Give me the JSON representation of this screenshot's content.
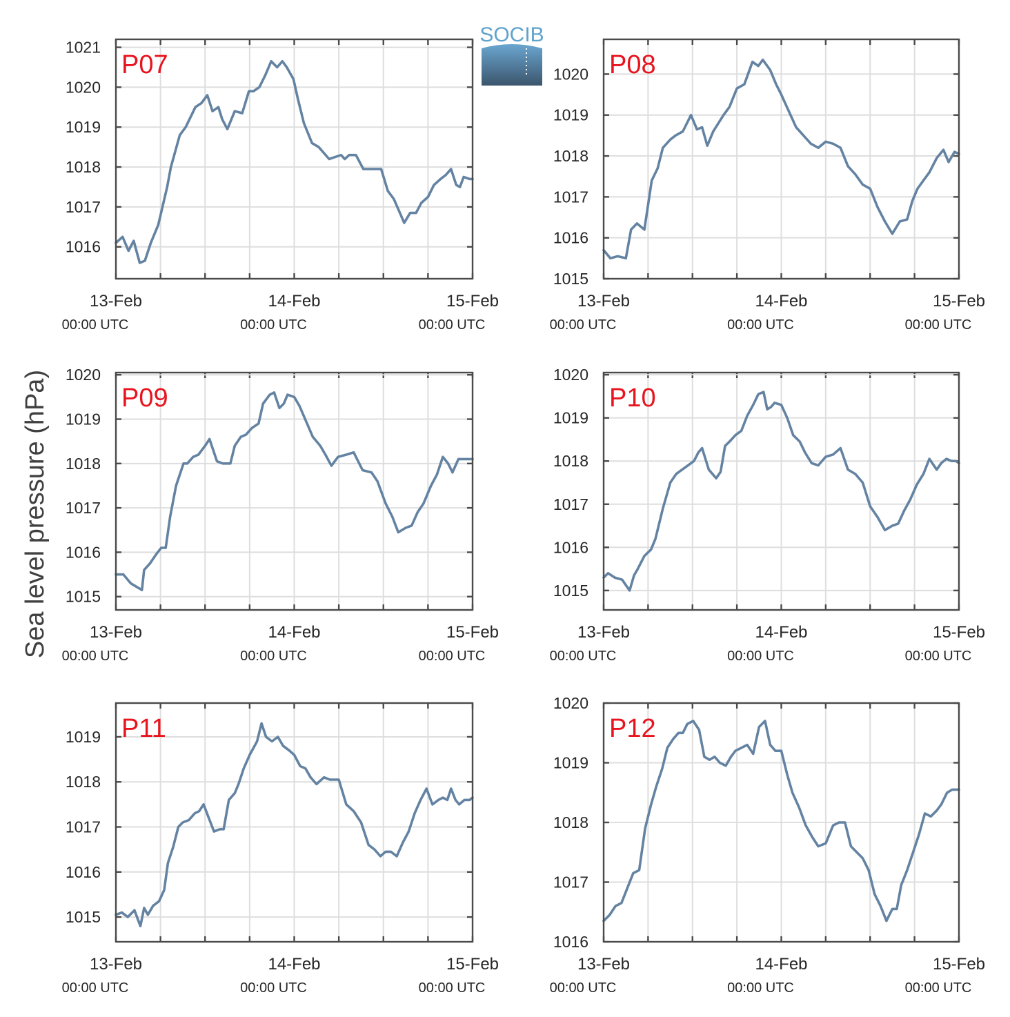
{
  "figure": {
    "ylabel": "Sea level pressure (hPa)",
    "logo_text": "SOCIB",
    "colors": {
      "series": "#6483a2",
      "panel_label": "#e8141e",
      "frame": "#4a4a4a",
      "grid": "#dedede",
      "logo_top": "#6aa6cf",
      "logo_bottom": "#3c556d"
    }
  },
  "chart_data": [
    {
      "type": "line",
      "name": "P07",
      "label": "P07",
      "xlim": [
        0,
        48
      ],
      "ylim": [
        1015.2,
        1021.2
      ],
      "yticks": [
        1016,
        1017,
        1018,
        1019,
        1020,
        1021
      ],
      "xticks": [
        {
          "label": "13-Feb",
          "sub": "00:00 UTC"
        },
        {
          "label": "14-Feb",
          "sub": "00:00 UTC"
        },
        {
          "label": "15-Feb",
          "sub": "00:00 UTC"
        }
      ],
      "hours": [
        0,
        0.9,
        1.7,
        2.4,
        3.2,
        3.9,
        4.7,
        5.7,
        6.9,
        7.4,
        8.6,
        9.4,
        10.7,
        11.5,
        12.3,
        13.0,
        13.8,
        14.3,
        15.0,
        16.0,
        17.0,
        17.9,
        18.5,
        19.3,
        20.1,
        20.9,
        21.7,
        22.4,
        23.0,
        23.9,
        24.5,
        25.3,
        26.4,
        27.3,
        28.7,
        29.5,
        30.3,
        30.8,
        31.4,
        32.3,
        33.3,
        34.2,
        35.7,
        36.6,
        37.4,
        38.1,
        38.8,
        39.6,
        40.4,
        41.1,
        42.0,
        42.8,
        43.7,
        44.4,
        45.1,
        45.8,
        46.3,
        46.8,
        47.6,
        48.0
      ],
      "values": [
        1016.1,
        1016.25,
        1015.9,
        1016.15,
        1015.6,
        1015.65,
        1016.1,
        1016.55,
        1017.5,
        1018.0,
        1018.8,
        1019.0,
        1019.5,
        1019.6,
        1019.8,
        1019.4,
        1019.5,
        1019.2,
        1018.95,
        1019.4,
        1019.35,
        1019.9,
        1019.9,
        1020.0,
        1020.3,
        1020.65,
        1020.5,
        1020.65,
        1020.5,
        1020.2,
        1019.7,
        1019.1,
        1018.6,
        1018.5,
        1018.2,
        1018.25,
        1018.3,
        1018.2,
        1018.3,
        1018.3,
        1017.95,
        1017.95,
        1017.95,
        1017.4,
        1017.2,
        1016.9,
        1016.6,
        1016.85,
        1016.85,
        1017.1,
        1017.25,
        1017.55,
        1017.7,
        1017.8,
        1017.95,
        1017.55,
        1017.5,
        1017.75,
        1017.7,
        1017.7
      ]
    },
    {
      "type": "line",
      "name": "P08",
      "label": "P08",
      "xlim": [
        0,
        48
      ],
      "ylim": [
        1015.0,
        1020.85
      ],
      "yticks": [
        1015,
        1016,
        1017,
        1018,
        1019,
        1020
      ],
      "xticks": [
        {
          "label": "13-Feb",
          "sub": "00:00 UTC"
        },
        {
          "label": "14-Feb",
          "sub": "00:00 UTC"
        },
        {
          "label": "15-Feb",
          "sub": "00:00 UTC"
        }
      ],
      "hours": [
        0,
        0.9,
        1.9,
        3.0,
        3.7,
        4.5,
        5.5,
        6.5,
        7.3,
        8.0,
        9.0,
        9.7,
        10.7,
        11.8,
        12.6,
        13.3,
        14.0,
        14.8,
        15.5,
        16.2,
        17.0,
        18.0,
        19.0,
        20.1,
        20.9,
        21.5,
        22.5,
        23.3,
        24.0,
        25.0,
        26.0,
        27.0,
        28.0,
        29.0,
        30.0,
        31.0,
        32.0,
        33.0,
        34.0,
        35.0,
        36.0,
        37.0,
        38.0,
        39.0,
        40.0,
        41.0,
        41.7,
        42.4,
        43.2,
        44.0,
        45.0,
        45.9,
        46.6,
        47.4,
        48.0
      ],
      "values": [
        1015.7,
        1015.5,
        1015.55,
        1015.5,
        1016.2,
        1016.35,
        1016.2,
        1017.4,
        1017.7,
        1018.2,
        1018.4,
        1018.5,
        1018.6,
        1019.0,
        1018.65,
        1018.7,
        1018.25,
        1018.6,
        1018.8,
        1019.0,
        1019.2,
        1019.65,
        1019.75,
        1020.3,
        1020.2,
        1020.35,
        1020.1,
        1019.75,
        1019.5,
        1019.1,
        1018.7,
        1018.5,
        1018.3,
        1018.2,
        1018.35,
        1018.3,
        1018.2,
        1017.75,
        1017.55,
        1017.3,
        1017.2,
        1016.75,
        1016.4,
        1016.1,
        1016.4,
        1016.45,
        1016.9,
        1017.2,
        1017.4,
        1017.6,
        1017.95,
        1018.15,
        1017.85,
        1018.1,
        1018.05
      ]
    },
    {
      "type": "line",
      "name": "P09",
      "label": "P09",
      "xlim": [
        0,
        48
      ],
      "ylim": [
        1014.7,
        1020.05
      ],
      "yticks": [
        1015,
        1016,
        1017,
        1018,
        1019,
        1020
      ],
      "xticks": [
        {
          "label": "13-Feb",
          "sub": "00:00 UTC"
        },
        {
          "label": "14-Feb",
          "sub": "00:00 UTC"
        },
        {
          "label": "15-Feb",
          "sub": "00:00 UTC"
        }
      ],
      "hours": [
        0,
        1.0,
        2.0,
        3.0,
        3.5,
        3.8,
        4.6,
        5.4,
        6.1,
        6.7,
        7.3,
        8.1,
        9.1,
        9.6,
        10.4,
        11.1,
        12.0,
        12.6,
        13.6,
        14.4,
        15.4,
        16.0,
        16.8,
        17.5,
        18.3,
        19.2,
        19.8,
        20.7,
        21.3,
        22.0,
        22.6,
        23.1,
        24.0,
        24.7,
        25.6,
        26.5,
        27.5,
        28.2,
        29.0,
        29.9,
        31.0,
        32.0,
        33.2,
        34.4,
        35.2,
        36.3,
        37.2,
        38.0,
        39.0,
        39.8,
        40.6,
        41.4,
        42.4,
        43.2,
        44.0,
        44.7,
        45.3,
        46.1,
        46.9,
        47.6,
        48.0
      ],
      "values": [
        1015.5,
        1015.5,
        1015.3,
        1015.2,
        1015.15,
        1015.6,
        1015.75,
        1015.95,
        1016.1,
        1016.1,
        1016.8,
        1017.5,
        1018.0,
        1018.0,
        1018.15,
        1018.2,
        1018.4,
        1018.55,
        1018.05,
        1018.0,
        1018.0,
        1018.4,
        1018.6,
        1018.65,
        1018.8,
        1018.9,
        1019.35,
        1019.55,
        1019.6,
        1019.25,
        1019.35,
        1019.55,
        1019.5,
        1019.3,
        1018.95,
        1018.6,
        1018.4,
        1018.2,
        1017.95,
        1018.15,
        1018.2,
        1018.25,
        1017.85,
        1017.8,
        1017.6,
        1017.1,
        1016.8,
        1016.45,
        1016.55,
        1016.6,
        1016.9,
        1017.1,
        1017.5,
        1017.75,
        1018.15,
        1018.0,
        1017.8,
        1018.1,
        1018.1,
        1018.1,
        1018.1
      ]
    },
    {
      "type": "line",
      "name": "P10",
      "label": "P10",
      "xlim": [
        0,
        48
      ],
      "ylim": [
        1014.55,
        1020.05
      ],
      "yticks": [
        1015,
        1016,
        1017,
        1018,
        1019,
        1020
      ],
      "xticks": [
        {
          "label": "13-Feb",
          "sub": "00:00 UTC"
        },
        {
          "label": "14-Feb",
          "sub": "00:00 UTC"
        },
        {
          "label": "15-Feb",
          "sub": "00:00 UTC"
        }
      ],
      "hours": [
        0,
        0.6,
        1.5,
        2.5,
        3.5,
        4.1,
        4.6,
        5.5,
        6.4,
        7.0,
        8.0,
        9.0,
        9.8,
        10.6,
        11.4,
        12.2,
        12.8,
        13.3,
        14.2,
        15.2,
        15.8,
        16.4,
        17.0,
        17.8,
        18.6,
        19.4,
        20.2,
        20.9,
        21.6,
        22.1,
        22.6,
        23.1,
        24.0,
        24.8,
        25.6,
        26.5,
        27.2,
        28.1,
        29.0,
        30.0,
        31.0,
        32.0,
        33.0,
        34.0,
        35.0,
        36.0,
        37.0,
        38.0,
        39.0,
        39.8,
        40.6,
        41.4,
        42.3,
        43.2,
        44.0,
        45.0,
        45.6,
        46.3,
        47.0,
        47.6,
        48.0
      ],
      "values": [
        1015.3,
        1015.4,
        1015.3,
        1015.25,
        1015.0,
        1015.35,
        1015.5,
        1015.8,
        1015.95,
        1016.2,
        1016.9,
        1017.5,
        1017.7,
        1017.8,
        1017.9,
        1018.0,
        1018.2,
        1018.3,
        1017.8,
        1017.6,
        1017.75,
        1018.35,
        1018.45,
        1018.6,
        1018.7,
        1019.05,
        1019.3,
        1019.55,
        1019.6,
        1019.2,
        1019.25,
        1019.35,
        1019.3,
        1019.0,
        1018.6,
        1018.45,
        1018.2,
        1017.95,
        1017.9,
        1018.1,
        1018.15,
        1018.3,
        1017.8,
        1017.7,
        1017.5,
        1016.95,
        1016.7,
        1016.4,
        1016.5,
        1016.55,
        1016.85,
        1017.1,
        1017.45,
        1017.7,
        1018.05,
        1017.8,
        1017.95,
        1018.05,
        1018.0,
        1018.0,
        1017.95
      ]
    },
    {
      "type": "line",
      "name": "P11",
      "label": "P11",
      "xlim": [
        0,
        48
      ],
      "ylim": [
        1014.45,
        1019.75
      ],
      "yticks": [
        1015,
        1016,
        1017,
        1018,
        1019
      ],
      "xticks": [
        {
          "label": "13-Feb",
          "sub": "00:00 UTC"
        },
        {
          "label": "14-Feb",
          "sub": "00:00 UTC"
        },
        {
          "label": "15-Feb",
          "sub": "00:00 UTC"
        }
      ],
      "hours": [
        0,
        0.8,
        1.6,
        2.5,
        3.3,
        3.8,
        4.3,
        5.0,
        5.8,
        6.5,
        7.0,
        7.7,
        8.4,
        9.0,
        9.8,
        10.6,
        11.2,
        11.8,
        12.5,
        13.2,
        14.0,
        14.5,
        15.2,
        16.0,
        16.5,
        17.2,
        18.0,
        19.0,
        19.6,
        20.2,
        21.0,
        21.8,
        22.5,
        23.3,
        24.0,
        24.8,
        25.5,
        26.2,
        27.0,
        28.0,
        28.8,
        30.0,
        31.0,
        32.0,
        33.0,
        34.0,
        34.8,
        35.6,
        36.3,
        37.0,
        37.8,
        38.6,
        39.4,
        40.2,
        41.0,
        41.8,
        42.6,
        43.4,
        44.0,
        44.6,
        45.1,
        45.7,
        46.2,
        46.9,
        47.6,
        48.0
      ],
      "values": [
        1015.05,
        1015.1,
        1015.0,
        1015.15,
        1014.8,
        1015.2,
        1015.05,
        1015.25,
        1015.35,
        1015.6,
        1016.2,
        1016.55,
        1017.0,
        1017.1,
        1017.15,
        1017.3,
        1017.35,
        1017.5,
        1017.2,
        1016.9,
        1016.95,
        1016.95,
        1017.6,
        1017.75,
        1017.95,
        1018.3,
        1018.6,
        1018.9,
        1019.3,
        1019.0,
        1018.9,
        1019.0,
        1018.8,
        1018.7,
        1018.6,
        1018.35,
        1018.3,
        1018.1,
        1017.95,
        1018.1,
        1018.05,
        1018.05,
        1017.5,
        1017.35,
        1017.1,
        1016.6,
        1016.5,
        1016.35,
        1016.45,
        1016.45,
        1016.35,
        1016.65,
        1016.9,
        1017.3,
        1017.6,
        1017.85,
        1017.5,
        1017.6,
        1017.65,
        1017.6,
        1017.85,
        1017.6,
        1017.5,
        1017.6,
        1017.6,
        1017.65
      ]
    },
    {
      "type": "line",
      "name": "P12",
      "label": "P12",
      "xlim": [
        0,
        48
      ],
      "ylim": [
        1016.0,
        1020.0
      ],
      "yticks": [
        1016,
        1017,
        1018,
        1019,
        1020
      ],
      "xticks": [
        {
          "label": "13-Feb",
          "sub": "00:00 UTC"
        },
        {
          "label": "14-Feb",
          "sub": "00:00 UTC"
        },
        {
          "label": "15-Feb",
          "sub": "00:00 UTC"
        }
      ],
      "hours": [
        0,
        0.8,
        1.6,
        2.4,
        3.2,
        4.0,
        4.8,
        5.6,
        6.4,
        7.1,
        7.9,
        8.6,
        9.4,
        10.1,
        10.7,
        11.3,
        12.1,
        12.9,
        13.6,
        14.3,
        15.0,
        15.7,
        16.5,
        17.2,
        17.8,
        18.6,
        19.4,
        20.2,
        21.0,
        21.8,
        22.5,
        23.2,
        24.0,
        24.8,
        25.5,
        26.4,
        27.3,
        28.2,
        29.0,
        30.0,
        31.0,
        31.8,
        32.6,
        33.4,
        34.2,
        35.0,
        35.8,
        36.6,
        37.4,
        38.2,
        39.0,
        39.6,
        40.2,
        41.0,
        41.8,
        42.6,
        43.4,
        44.2,
        45.0,
        45.6,
        46.4,
        47.1,
        47.6,
        48.0
      ],
      "values": [
        1016.35,
        1016.45,
        1016.6,
        1016.65,
        1016.9,
        1017.15,
        1017.2,
        1017.9,
        1018.3,
        1018.6,
        1018.9,
        1019.25,
        1019.4,
        1019.5,
        1019.5,
        1019.65,
        1019.7,
        1019.55,
        1019.1,
        1019.05,
        1019.1,
        1019.0,
        1018.95,
        1019.1,
        1019.2,
        1019.25,
        1019.3,
        1019.15,
        1019.6,
        1019.7,
        1019.3,
        1019.2,
        1019.2,
        1018.8,
        1018.5,
        1018.25,
        1017.95,
        1017.75,
        1017.6,
        1017.65,
        1017.95,
        1018.0,
        1018.0,
        1017.6,
        1017.5,
        1017.4,
        1017.2,
        1016.8,
        1016.6,
        1016.35,
        1016.55,
        1016.55,
        1016.95,
        1017.2,
        1017.5,
        1017.8,
        1018.15,
        1018.1,
        1018.2,
        1018.3,
        1018.5,
        1018.55,
        1018.55,
        1018.55
      ]
    }
  ]
}
